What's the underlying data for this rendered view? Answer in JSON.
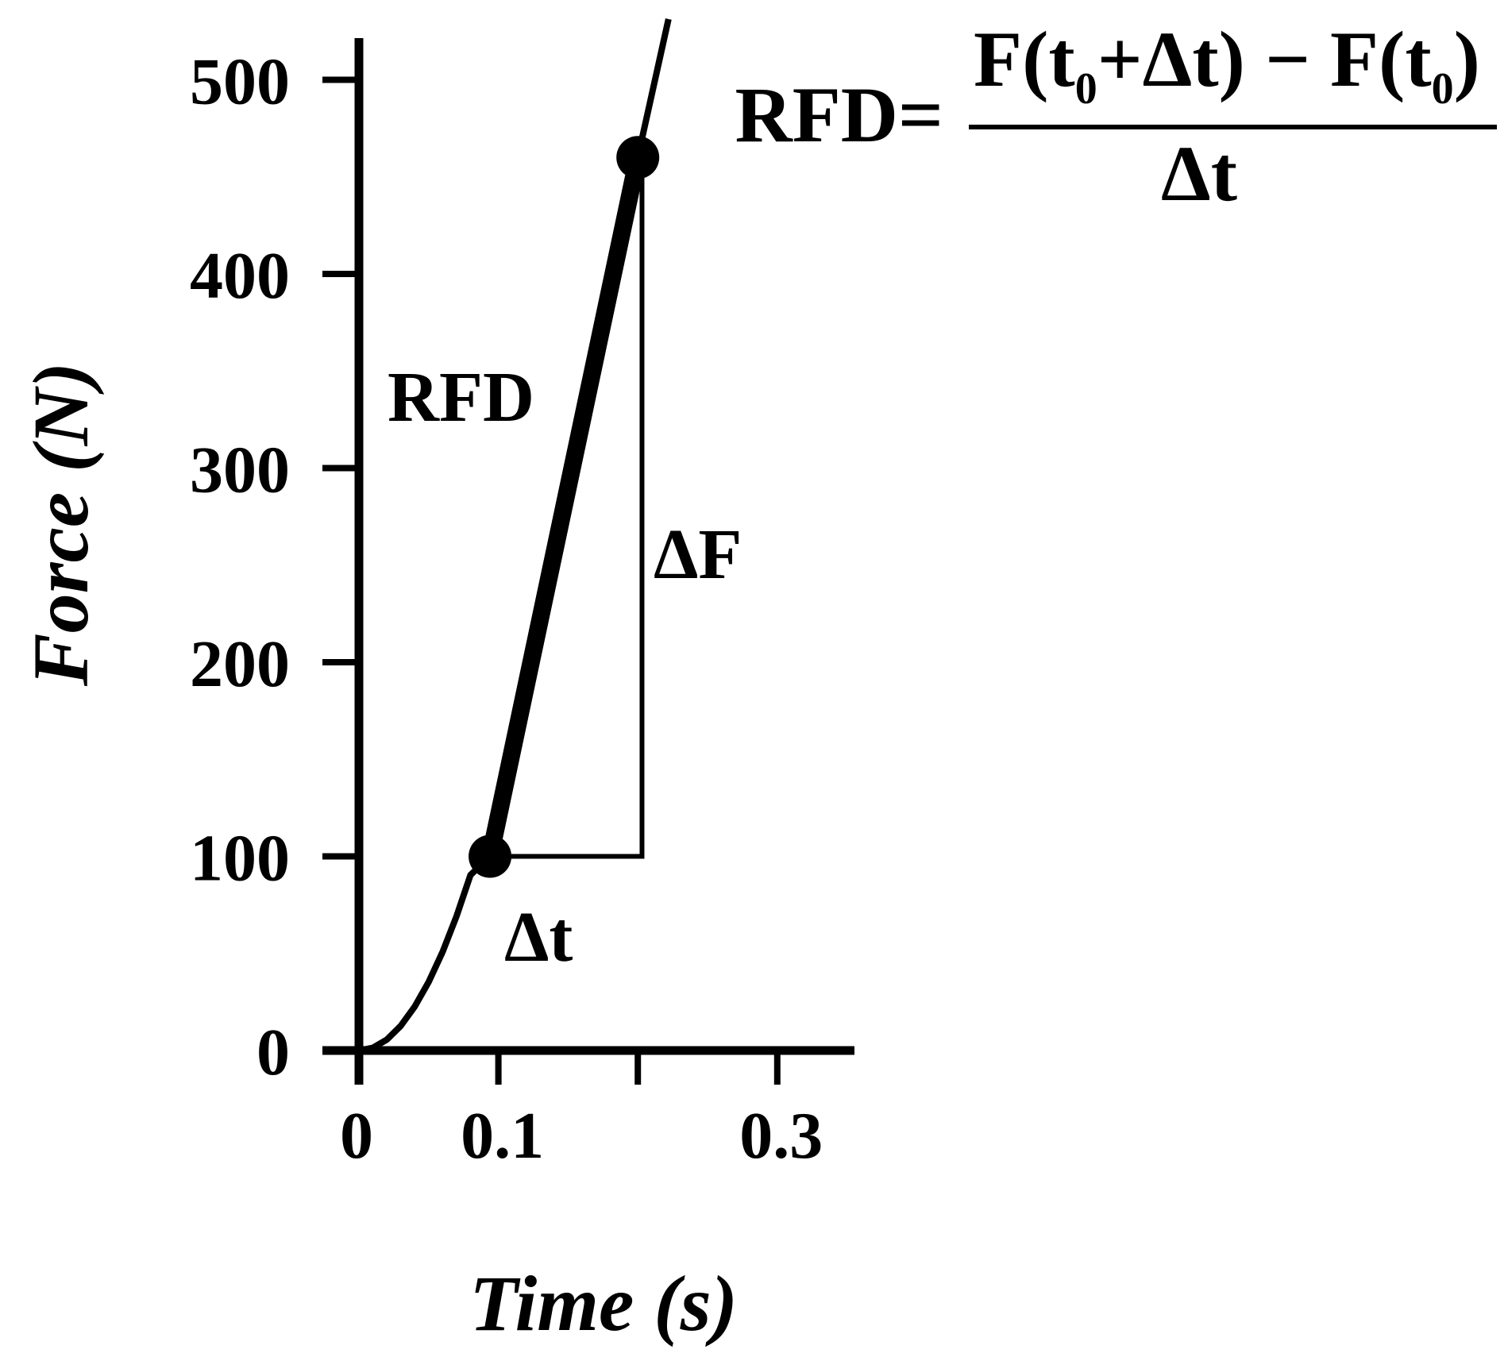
{
  "chart_data": {
    "type": "line",
    "xlabel": "Time (s)",
    "ylabel": "Force (N)",
    "xlim": [
      0,
      0.35
    ],
    "ylim": [
      0,
      530
    ],
    "x_ticks": [
      0,
      0.1,
      0.2,
      0.3
    ],
    "x_tick_labels": [
      "0",
      "0.1",
      "",
      "0.3"
    ],
    "y_ticks": [
      0,
      100,
      200,
      300,
      400,
      500
    ],
    "y_tick_labels": [
      "0",
      "100",
      "200",
      "300",
      "400",
      "500"
    ],
    "grid": false,
    "series": [
      {
        "x": [
          0,
          0.01,
          0.02,
          0.03,
          0.04,
          0.05,
          0.06,
          0.07,
          0.08,
          0.094,
          0.12,
          0.14,
          0.16,
          0.18,
          0.2,
          0.215,
          0.22,
          0.228
        ],
        "y": [
          0,
          1.4,
          5.6,
          12.7,
          22.6,
          35.3,
          50.8,
          69.2,
          90.4,
          100,
          168,
          220,
          272,
          324,
          377,
          416,
          440,
          530
        ]
      }
    ],
    "markers": [
      {
        "x": 0.094,
        "y": 100
      },
      {
        "x": 0.2,
        "y": 460
      }
    ],
    "annotations": {
      "rfd_label": "RFD",
      "delta_f_label": "ΔF",
      "delta_t_label": "Δt"
    },
    "formula": {
      "lhs": "RFD=",
      "num_a": "F(t",
      "num_sub_a": "0",
      "num_b": "+Δt) − F(t",
      "num_sub_b": "0",
      "num_c": ")",
      "denominator": "Δt"
    }
  }
}
